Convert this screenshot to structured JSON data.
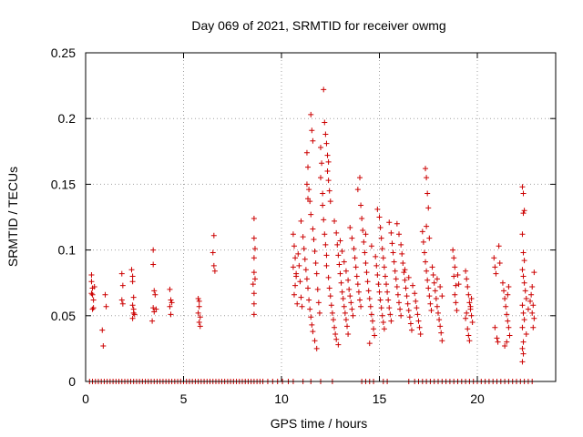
{
  "chart_data": {
    "type": "scatter",
    "title": "Day 069 of 2021, SRMTID for receiver owmg",
    "xlabel": "GPS time / hours",
    "ylabel": "SRMTID / TECUs",
    "xlim": [
      0,
      24
    ],
    "ylim": [
      0,
      0.25
    ],
    "xticks": [
      0,
      5,
      10,
      15,
      20
    ],
    "yticks": [
      0,
      0.05,
      0.1,
      0.15,
      0.2,
      0.25
    ],
    "xtick_labels": [
      "0",
      "5",
      "10",
      "15",
      "20"
    ],
    "ytick_labels": [
      "0",
      "0.05",
      "0.1",
      "0.15",
      "0.2",
      "0.25"
    ],
    "grid": true,
    "marker": "+",
    "series_color": "#cc0000",
    "points": [
      [
        0.3,
        0.081
      ],
      [
        0.3,
        0.076
      ],
      [
        0.35,
        0.071
      ],
      [
        0.35,
        0.066
      ],
      [
        0.4,
        0.062
      ],
      [
        0.4,
        0.056
      ],
      [
        0.35,
        0.055
      ],
      [
        0.3,
        0.067
      ],
      [
        0.45,
        0.072
      ],
      [
        0.85,
        0.039
      ],
      [
        0.9,
        0.027
      ],
      [
        1.0,
        0.066
      ],
      [
        1.05,
        0.057
      ],
      [
        1.85,
        0.082
      ],
      [
        1.9,
        0.073
      ],
      [
        1.85,
        0.062
      ],
      [
        1.9,
        0.059
      ],
      [
        2.35,
        0.085
      ],
      [
        2.4,
        0.08
      ],
      [
        2.4,
        0.076
      ],
      [
        2.45,
        0.064
      ],
      [
        2.4,
        0.058
      ],
      [
        2.45,
        0.055
      ],
      [
        2.5,
        0.051
      ],
      [
        2.4,
        0.048
      ],
      [
        2.45,
        0.052
      ],
      [
        3.45,
        0.1
      ],
      [
        3.45,
        0.089
      ],
      [
        3.5,
        0.069
      ],
      [
        3.55,
        0.066
      ],
      [
        3.45,
        0.056
      ],
      [
        3.5,
        0.053
      ],
      [
        3.4,
        0.046
      ],
      [
        3.6,
        0.055
      ],
      [
        4.3,
        0.07
      ],
      [
        4.35,
        0.062
      ],
      [
        4.4,
        0.06
      ],
      [
        4.3,
        0.057
      ],
      [
        4.35,
        0.051
      ],
      [
        5.75,
        0.063
      ],
      [
        5.8,
        0.061
      ],
      [
        5.8,
        0.057
      ],
      [
        5.85,
        0.049
      ],
      [
        5.8,
        0.045
      ],
      [
        5.85,
        0.042
      ],
      [
        5.75,
        0.052
      ],
      [
        6.55,
        0.111
      ],
      [
        6.5,
        0.098
      ],
      [
        6.55,
        0.088
      ],
      [
        6.6,
        0.084
      ],
      [
        8.6,
        0.124
      ],
      [
        8.6,
        0.109
      ],
      [
        8.65,
        0.101
      ],
      [
        8.6,
        0.094
      ],
      [
        8.6,
        0.083
      ],
      [
        8.65,
        0.078
      ],
      [
        8.55,
        0.074
      ],
      [
        8.6,
        0.067
      ],
      [
        8.6,
        0.059
      ],
      [
        8.6,
        0.051
      ],
      [
        10.6,
        0.112
      ],
      [
        10.65,
        0.103
      ],
      [
        10.7,
        0.094
      ],
      [
        10.6,
        0.087
      ],
      [
        10.75,
        0.08
      ],
      [
        10.7,
        0.073
      ],
      [
        10.65,
        0.066
      ],
      [
        10.8,
        0.059
      ],
      [
        10.75,
        0.082
      ],
      [
        10.85,
        0.097
      ],
      [
        10.9,
        0.088
      ],
      [
        10.95,
        0.076
      ],
      [
        11.0,
        0.064
      ],
      [
        11.05,
        0.057
      ],
      [
        11.0,
        0.122
      ],
      [
        11.1,
        0.11
      ],
      [
        11.15,
        0.101
      ],
      [
        11.2,
        0.093
      ],
      [
        11.25,
        0.085
      ],
      [
        11.3,
        0.078
      ],
      [
        11.35,
        0.071
      ],
      [
        11.4,
        0.062
      ],
      [
        11.45,
        0.055
      ],
      [
        11.5,
        0.049
      ],
      [
        11.55,
        0.043
      ],
      [
        11.6,
        0.038
      ],
      [
        11.3,
        0.174
      ],
      [
        11.35,
        0.163
      ],
      [
        11.3,
        0.15
      ],
      [
        11.4,
        0.146
      ],
      [
        11.35,
        0.139
      ],
      [
        11.45,
        0.137
      ],
      [
        11.5,
        0.127
      ],
      [
        11.5,
        0.203
      ],
      [
        11.55,
        0.191
      ],
      [
        11.6,
        0.183
      ],
      [
        11.6,
        0.116
      ],
      [
        11.65,
        0.108
      ],
      [
        11.7,
        0.099
      ],
      [
        11.75,
        0.09
      ],
      [
        11.8,
        0.082
      ],
      [
        11.85,
        0.07
      ],
      [
        11.9,
        0.06
      ],
      [
        11.95,
        0.052
      ],
      [
        11.7,
        0.031
      ],
      [
        11.8,
        0.025
      ],
      [
        12.0,
        0.178
      ],
      [
        12.05,
        0.166
      ],
      [
        12.0,
        0.155
      ],
      [
        12.1,
        0.143
      ],
      [
        12.1,
        0.134
      ],
      [
        12.15,
        0.123
      ],
      [
        12.2,
        0.112
      ],
      [
        12.25,
        0.104
      ],
      [
        12.3,
        0.096
      ],
      [
        12.15,
        0.222
      ],
      [
        12.2,
        0.197
      ],
      [
        12.25,
        0.188
      ],
      [
        12.3,
        0.181
      ],
      [
        12.35,
        0.172
      ],
      [
        12.4,
        0.167
      ],
      [
        12.35,
        0.16
      ],
      [
        12.4,
        0.153
      ],
      [
        12.45,
        0.145
      ],
      [
        12.5,
        0.137
      ],
      [
        12.3,
        0.088
      ],
      [
        12.4,
        0.079
      ],
      [
        12.45,
        0.071
      ],
      [
        12.5,
        0.065
      ],
      [
        12.55,
        0.058
      ],
      [
        12.6,
        0.052
      ],
      [
        12.65,
        0.047
      ],
      [
        12.7,
        0.041
      ],
      [
        12.75,
        0.036
      ],
      [
        12.8,
        0.032
      ],
      [
        12.9,
        0.028
      ],
      [
        12.7,
        0.122
      ],
      [
        12.8,
        0.113
      ],
      [
        12.85,
        0.104
      ],
      [
        12.9,
        0.096
      ],
      [
        12.95,
        0.089
      ],
      [
        13.0,
        0.082
      ],
      [
        13.05,
        0.075
      ],
      [
        13.1,
        0.068
      ],
      [
        13.15,
        0.063
      ],
      [
        13.2,
        0.057
      ],
      [
        13.25,
        0.052
      ],
      [
        13.3,
        0.047
      ],
      [
        13.35,
        0.042
      ],
      [
        13.4,
        0.036
      ],
      [
        13.0,
        0.107
      ],
      [
        13.1,
        0.099
      ],
      [
        13.2,
        0.091
      ],
      [
        13.3,
        0.084
      ],
      [
        13.4,
        0.077
      ],
      [
        13.45,
        0.07
      ],
      [
        13.5,
        0.065
      ],
      [
        13.55,
        0.06
      ],
      [
        13.6,
        0.055
      ],
      [
        13.65,
        0.05
      ],
      [
        13.5,
        0.117
      ],
      [
        13.6,
        0.109
      ],
      [
        13.7,
        0.101
      ],
      [
        13.75,
        0.094
      ],
      [
        13.8,
        0.087
      ],
      [
        13.85,
        0.08
      ],
      [
        13.9,
        0.074
      ],
      [
        13.95,
        0.068
      ],
      [
        14.0,
        0.062
      ],
      [
        14.05,
        0.057
      ],
      [
        13.9,
        0.146
      ],
      [
        14.0,
        0.155
      ],
      [
        14.05,
        0.134
      ],
      [
        14.1,
        0.124
      ],
      [
        14.15,
        0.115
      ],
      [
        14.2,
        0.106
      ],
      [
        14.25,
        0.098
      ],
      [
        14.3,
        0.09
      ],
      [
        14.35,
        0.083
      ],
      [
        14.4,
        0.076
      ],
      [
        14.45,
        0.069
      ],
      [
        14.5,
        0.063
      ],
      [
        14.55,
        0.057
      ],
      [
        14.6,
        0.051
      ],
      [
        14.65,
        0.046
      ],
      [
        14.7,
        0.04
      ],
      [
        14.75,
        0.035
      ],
      [
        14.5,
        0.029
      ],
      [
        14.3,
        0.112
      ],
      [
        14.6,
        0.103
      ],
      [
        14.8,
        0.095
      ],
      [
        14.85,
        0.088
      ],
      [
        14.9,
        0.081
      ],
      [
        14.95,
        0.074
      ],
      [
        15.0,
        0.068
      ],
      [
        15.05,
        0.062
      ],
      [
        15.1,
        0.056
      ],
      [
        15.15,
        0.05
      ],
      [
        15.2,
        0.045
      ],
      [
        15.25,
        0.04
      ],
      [
        14.9,
        0.131
      ],
      [
        15.0,
        0.125
      ],
      [
        15.05,
        0.117
      ],
      [
        15.1,
        0.109
      ],
      [
        15.15,
        0.101
      ],
      [
        15.2,
        0.094
      ],
      [
        15.25,
        0.087
      ],
      [
        15.3,
        0.08
      ],
      [
        15.35,
        0.074
      ],
      [
        15.4,
        0.068
      ],
      [
        15.45,
        0.062
      ],
      [
        15.5,
        0.056
      ],
      [
        15.55,
        0.051
      ],
      [
        15.6,
        0.046
      ],
      [
        15.5,
        0.121
      ],
      [
        15.6,
        0.113
      ],
      [
        15.65,
        0.105
      ],
      [
        15.7,
        0.098
      ],
      [
        15.75,
        0.091
      ],
      [
        15.8,
        0.084
      ],
      [
        15.85,
        0.078
      ],
      [
        15.9,
        0.072
      ],
      [
        15.95,
        0.066
      ],
      [
        16.0,
        0.06
      ],
      [
        16.05,
        0.055
      ],
      [
        16.1,
        0.05
      ],
      [
        15.9,
        0.12
      ],
      [
        16.0,
        0.112
      ],
      [
        16.1,
        0.104
      ],
      [
        16.15,
        0.097
      ],
      [
        16.2,
        0.09
      ],
      [
        16.25,
        0.083
      ],
      [
        16.3,
        0.077
      ],
      [
        16.35,
        0.071
      ],
      [
        16.4,
        0.065
      ],
      [
        16.45,
        0.059
      ],
      [
        16.5,
        0.054
      ],
      [
        16.55,
        0.049
      ],
      [
        16.6,
        0.044
      ],
      [
        16.65,
        0.039
      ],
      [
        16.3,
        0.085
      ],
      [
        16.5,
        0.079
      ],
      [
        16.7,
        0.073
      ],
      [
        16.8,
        0.067
      ],
      [
        16.85,
        0.061
      ],
      [
        16.9,
        0.056
      ],
      [
        16.95,
        0.051
      ],
      [
        17.0,
        0.046
      ],
      [
        17.05,
        0.041
      ],
      [
        17.1,
        0.036
      ],
      [
        17.2,
        0.114
      ],
      [
        17.25,
        0.106
      ],
      [
        17.3,
        0.098
      ],
      [
        17.35,
        0.091
      ],
      [
        17.4,
        0.084
      ],
      [
        17.45,
        0.077
      ],
      [
        17.5,
        0.071
      ],
      [
        17.55,
        0.065
      ],
      [
        17.6,
        0.059
      ],
      [
        17.65,
        0.054
      ],
      [
        17.35,
        0.162
      ],
      [
        17.4,
        0.155
      ],
      [
        17.45,
        0.143
      ],
      [
        17.5,
        0.132
      ],
      [
        17.4,
        0.118
      ],
      [
        17.55,
        0.109
      ],
      [
        17.7,
        0.087
      ],
      [
        17.75,
        0.081
      ],
      [
        17.8,
        0.075
      ],
      [
        17.85,
        0.069
      ],
      [
        17.9,
        0.063
      ],
      [
        17.95,
        0.057
      ],
      [
        18.0,
        0.052
      ],
      [
        18.05,
        0.047
      ],
      [
        18.1,
        0.042
      ],
      [
        18.15,
        0.037
      ],
      [
        18.2,
        0.031
      ],
      [
        17.95,
        0.078
      ],
      [
        18.1,
        0.072
      ],
      [
        18.2,
        0.065
      ],
      [
        18.75,
        0.1
      ],
      [
        18.8,
        0.094
      ],
      [
        18.85,
        0.087
      ],
      [
        18.8,
        0.08
      ],
      [
        18.9,
        0.073
      ],
      [
        18.85,
        0.066
      ],
      [
        18.9,
        0.06
      ],
      [
        18.95,
        0.054
      ],
      [
        19.0,
        0.081
      ],
      [
        19.05,
        0.074
      ],
      [
        19.4,
        0.084
      ],
      [
        19.45,
        0.078
      ],
      [
        19.5,
        0.072
      ],
      [
        19.55,
        0.066
      ],
      [
        19.6,
        0.06
      ],
      [
        19.65,
        0.055
      ],
      [
        19.7,
        0.05
      ],
      [
        19.75,
        0.045
      ],
      [
        19.5,
        0.04
      ],
      [
        19.55,
        0.035
      ],
      [
        19.6,
        0.031
      ],
      [
        19.65,
        0.057
      ],
      [
        19.7,
        0.063
      ],
      [
        19.4,
        0.048
      ],
      [
        19.45,
        0.052
      ],
      [
        20.85,
        0.094
      ],
      [
        20.9,
        0.087
      ],
      [
        20.95,
        0.082
      ],
      [
        21.0,
        0.033
      ],
      [
        21.05,
        0.03
      ],
      [
        20.9,
        0.041
      ],
      [
        21.1,
        0.103
      ],
      [
        21.15,
        0.09
      ],
      [
        21.3,
        0.075
      ],
      [
        21.35,
        0.069
      ],
      [
        21.4,
        0.063
      ],
      [
        21.45,
        0.057
      ],
      [
        21.5,
        0.051
      ],
      [
        21.55,
        0.046
      ],
      [
        21.6,
        0.041
      ],
      [
        21.65,
        0.035
      ],
      [
        21.5,
        0.03
      ],
      [
        21.4,
        0.027
      ],
      [
        21.55,
        0.066
      ],
      [
        21.6,
        0.072
      ],
      [
        22.3,
        0.148
      ],
      [
        22.35,
        0.143
      ],
      [
        22.4,
        0.13
      ],
      [
        22.35,
        0.128
      ],
      [
        22.3,
        0.112
      ],
      [
        22.35,
        0.098
      ],
      [
        22.4,
        0.092
      ],
      [
        22.3,
        0.085
      ],
      [
        22.35,
        0.08
      ],
      [
        22.4,
        0.075
      ],
      [
        22.45,
        0.069
      ],
      [
        22.5,
        0.063
      ],
      [
        22.3,
        0.058
      ],
      [
        22.35,
        0.052
      ],
      [
        22.4,
        0.047
      ],
      [
        22.3,
        0.041
      ],
      [
        22.35,
        0.03
      ],
      [
        22.3,
        0.025
      ],
      [
        22.35,
        0.021
      ],
      [
        22.3,
        0.015
      ],
      [
        22.5,
        0.036
      ],
      [
        22.6,
        0.055
      ],
      [
        22.7,
        0.061
      ],
      [
        22.8,
        0.072
      ],
      [
        22.75,
        0.066
      ],
      [
        22.85,
        0.058
      ],
      [
        22.8,
        0.052
      ],
      [
        22.9,
        0.048
      ],
      [
        22.85,
        0.041
      ],
      [
        22.9,
        0.083
      ]
    ],
    "zero_x": [
      0.2,
      0.35,
      0.5,
      0.65,
      0.8,
      0.95,
      1.1,
      1.25,
      1.4,
      1.55,
      1.7,
      1.85,
      2.0,
      2.15,
      2.3,
      2.45,
      2.6,
      2.75,
      2.9,
      3.05,
      3.2,
      3.35,
      3.5,
      3.65,
      3.8,
      3.95,
      4.1,
      4.25,
      4.4,
      4.55,
      4.7,
      4.85,
      5.0,
      5.15,
      5.3,
      5.45,
      5.6,
      5.75,
      5.9,
      6.05,
      6.2,
      6.35,
      6.5,
      6.65,
      6.8,
      6.95,
      7.1,
      7.25,
      7.4,
      7.55,
      7.7,
      7.85,
      8.0,
      8.15,
      8.3,
      8.45,
      8.6,
      8.75,
      8.9,
      9.05,
      9.3,
      9.55,
      9.8,
      10.05,
      10.35,
      10.6,
      11.1,
      11.5,
      12.0,
      12.6,
      14.1,
      14.3,
      14.5,
      14.7,
      15.2,
      15.4,
      16.5,
      16.8,
      17.0,
      17.2,
      17.4,
      17.6,
      17.8,
      18.0,
      18.2,
      18.4,
      18.6,
      18.8,
      19.0,
      19.2,
      19.4,
      19.6,
      19.8,
      20.0,
      20.2,
      20.4,
      20.6,
      20.8,
      21.0,
      21.2,
      21.4,
      21.6,
      21.8,
      22.0,
      22.2,
      22.4,
      22.6,
      22.8
    ]
  }
}
